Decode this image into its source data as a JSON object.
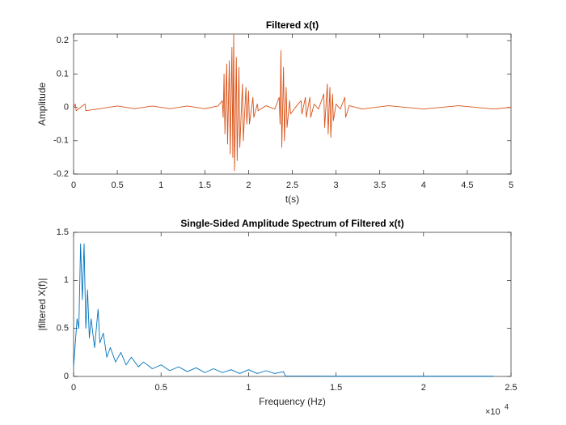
{
  "chart_data": [
    {
      "type": "line",
      "title": "Filtered x(t)",
      "x_label": "t(s)",
      "y_label": "Amplitude",
      "xlim": [
        0,
        5
      ],
      "ylim": [
        -0.2,
        0.22
      ],
      "xticks": [
        0,
        0.5,
        1,
        1.5,
        2,
        2.5,
        3,
        3.5,
        4,
        4.5,
        5
      ],
      "yticks": [
        -0.2,
        -0.1,
        0,
        0.1,
        0.2
      ],
      "series": [
        {
          "color": "#D95319",
          "x": [
            0,
            0.02,
            0.03,
            0.1,
            0.13,
            0.14,
            0.3,
            0.5,
            0.7,
            0.9,
            1.1,
            1.3,
            1.5,
            1.65,
            1.7,
            1.71,
            1.72,
            1.73,
            1.75,
            1.76,
            1.78,
            1.79,
            1.81,
            1.82,
            1.83,
            1.84,
            1.86,
            1.87,
            1.89,
            1.9,
            1.93,
            1.94,
            1.97,
            1.98,
            2.0,
            2.01,
            2.05,
            2.06,
            2.1,
            2.11,
            2.2,
            2.3,
            2.35,
            2.36,
            2.37,
            2.38,
            2.4,
            2.41,
            2.43,
            2.44,
            2.47,
            2.48,
            2.55,
            2.6,
            2.61,
            2.65,
            2.66,
            2.7,
            2.71,
            2.75,
            2.8,
            2.86,
            2.87,
            2.9,
            2.91,
            2.93,
            2.94,
            2.96,
            2.97,
            3.0,
            3.05,
            3.1,
            3.11,
            3.15,
            3.3,
            3.6,
            4.0,
            4.4,
            4.8,
            5.0
          ],
          "values": [
            0,
            0.01,
            -0.01,
            0.004,
            0.01,
            -0.01,
            -0.004,
            0.004,
            -0.004,
            0.004,
            -0.004,
            0.004,
            -0.004,
            0.004,
            0.02,
            -0.03,
            0.1,
            -0.08,
            0.13,
            -0.11,
            0.14,
            -0.14,
            0.18,
            -0.15,
            0.22,
            -0.19,
            0.15,
            -0.16,
            0.12,
            -0.12,
            0.07,
            -0.1,
            0.06,
            -0.05,
            0.05,
            -0.05,
            0.03,
            -0.03,
            0.01,
            -0.01,
            0.005,
            -0.005,
            0.03,
            -0.05,
            0.17,
            -0.12,
            0.12,
            -0.1,
            0.06,
            -0.06,
            0.02,
            -0.02,
            0.005,
            0.02,
            -0.02,
            0.03,
            -0.03,
            0.03,
            -0.03,
            0.01,
            -0.005,
            0.04,
            -0.06,
            0.07,
            -0.08,
            0.06,
            -0.09,
            0.04,
            -0.04,
            0.01,
            -0.005,
            0.03,
            -0.03,
            0.005,
            -0.005,
            0.005,
            -0.005,
            0.005,
            -0.005,
            0
          ]
        }
      ]
    },
    {
      "type": "line",
      "title": "Single-Sided Amplitude Spectrum of Filtered x(t)",
      "x_label": "Frequency (Hz)",
      "y_label": "|filtered X(f)|",
      "x_exponent_base": "×10",
      "x_exponent_power": "4",
      "xlim": [
        0,
        25000
      ],
      "ylim": [
        0,
        1.5
      ],
      "xticks": [
        0,
        {
          "value": 5000,
          "label": "0.5"
        },
        {
          "value": 10000,
          "label": "1"
        },
        {
          "value": 15000,
          "label": "1.5"
        },
        {
          "value": 20000,
          "label": "2"
        },
        {
          "value": 25000,
          "label": "2.5"
        }
      ],
      "yticks": [
        0,
        0.5,
        1,
        1.5
      ],
      "series": [
        {
          "color": "#0072BD",
          "x": [
            0,
            200,
            300,
            400,
            500,
            600,
            700,
            800,
            900,
            1000,
            1200,
            1400,
            1500,
            1700,
            1900,
            2100,
            2400,
            2700,
            3000,
            3300,
            3700,
            4000,
            4500,
            5000,
            5500,
            6000,
            6500,
            7000,
            7500,
            8000,
            8500,
            9000,
            9500,
            10000,
            10500,
            11000,
            11500,
            12000,
            12100,
            15000,
            20000,
            24000
          ],
          "values": [
            0.1,
            0.6,
            0.5,
            1.38,
            0.8,
            1.38,
            0.5,
            0.9,
            0.4,
            0.6,
            0.3,
            0.7,
            0.35,
            0.45,
            0.2,
            0.3,
            0.15,
            0.25,
            0.12,
            0.2,
            0.1,
            0.15,
            0.08,
            0.12,
            0.06,
            0.1,
            0.05,
            0.09,
            0.04,
            0.08,
            0.04,
            0.07,
            0.03,
            0.07,
            0.03,
            0.06,
            0.03,
            0.05,
            0.005,
            0.002,
            0.002,
            0.002
          ]
        }
      ]
    }
  ]
}
